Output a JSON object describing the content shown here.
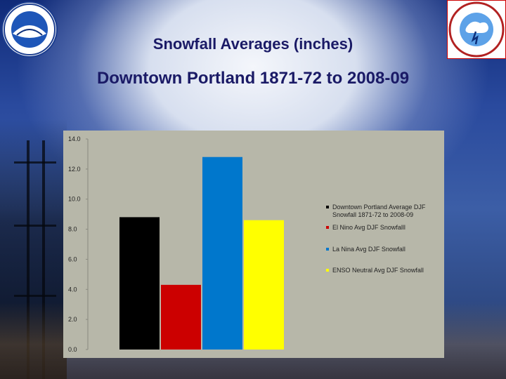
{
  "slide": {
    "title_line1": "Snowfall Averages (inches)",
    "title_line2": "Downtown Portland 1871-72 to 2008-09"
  },
  "colors": {
    "plot_background": "#b7b7a9",
    "series": [
      "#000000",
      "#cc0000",
      "#0077cc",
      "#ffff00"
    ]
  },
  "chart_data": {
    "type": "bar",
    "title": "",
    "xlabel": "",
    "ylabel": "",
    "ylim": [
      0,
      14
    ],
    "yticks": [
      "0.0",
      "2.0",
      "4.0",
      "6.0",
      "8.0",
      "10.0",
      "12.0",
      "14.0"
    ],
    "grid": false,
    "legend_position": "right",
    "series": [
      {
        "name": "Downtown Portland Average DJF Snowfall 1871-72 to 2008-09",
        "values": [
          8.8
        ]
      },
      {
        "name": "El Nino Avg DJF Snowfalll",
        "values": [
          4.3
        ]
      },
      {
        "name": "La Nina Avg DJF Snowfall",
        "values": [
          12.8
        ]
      },
      {
        "name": "ENSO Neutral Avg DJF Snowfall",
        "values": [
          8.6
        ]
      }
    ]
  }
}
